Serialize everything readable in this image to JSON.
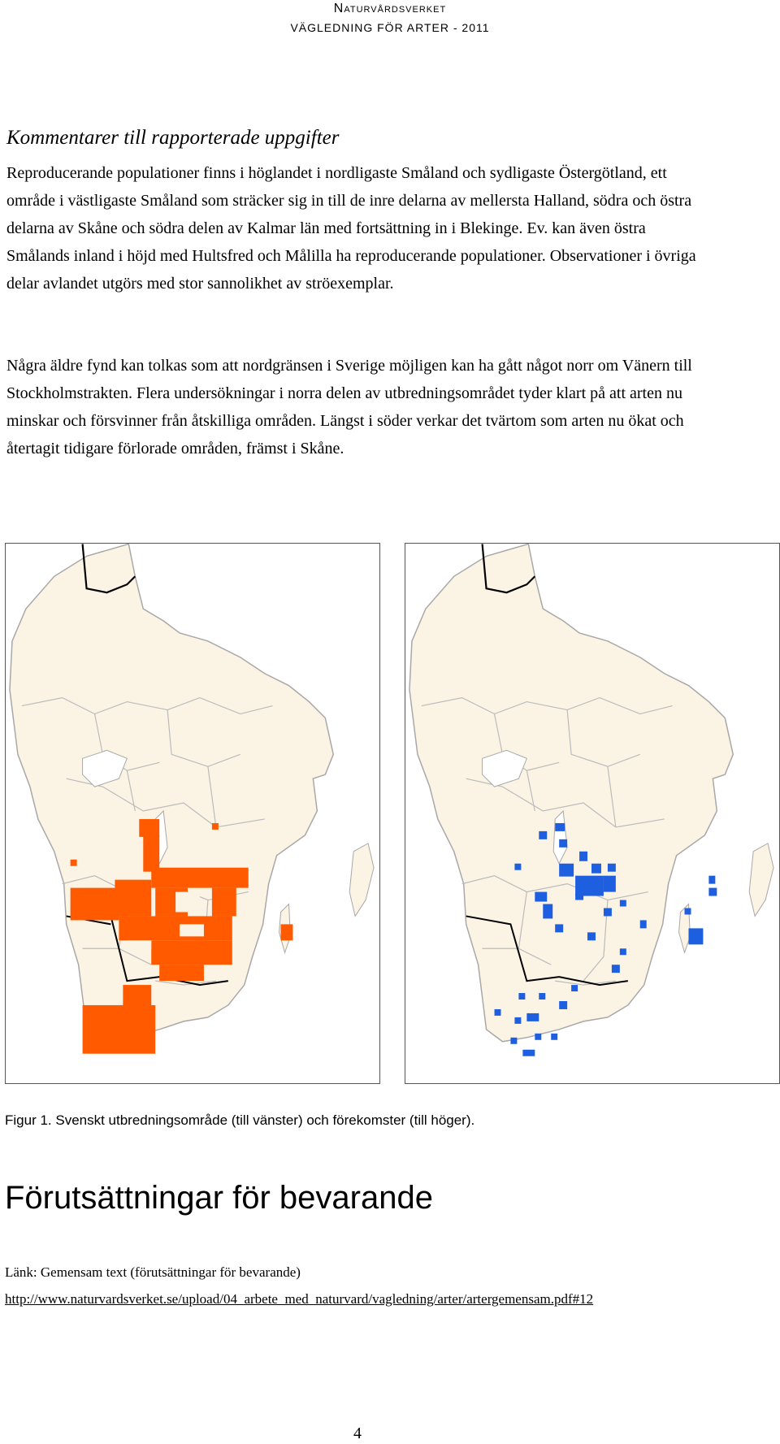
{
  "header": {
    "organization": "Naturvårdsverket",
    "subtitle": "VÄGLEDNING FÖR ARTER - 2011"
  },
  "section_heading": "Kommentarer till rapporterade uppgifter",
  "paragraph1": "Reproducerande populationer finns i höglandet i nordligaste Småland och sydligaste Östergötland, ett område i västligaste Småland som sträcker sig in till de inre delarna av mellersta Halland, södra och östra delarna av Skåne och södra delen av Kalmar län med fortsättning in i Blekinge. Ev. kan även östra Smålands inland i höjd med Hultsfred och Målilla ha reproducerande populationer. Observationer i övriga delar avlandet utgörs med stor sannolikhet av ströexemplar.",
  "paragraph2": "Några äldre fynd kan tolkas som att nordgränsen i Sverige möjligen kan ha gått något norr om Vänern till Stockholmstrakten. Flera undersökningar i norra delen av utbredningsområdet tyder klart på att arten nu minskar och försvinner från åtskilliga områden. Längst i söder verkar det tvärtom som arten nu ökat och återtagit tidigare förlorade områden, främst i Skåne.",
  "maps": {
    "left": {
      "description_icon": "distribution-map",
      "fill_color": "#ff5a00"
    },
    "right": {
      "description_icon": "occurrence-map",
      "fill_color": "#1e5fe0"
    },
    "land_color": "#fbf3e4",
    "border_color": "#b9b9b9"
  },
  "caption": "Figur 1. Svenskt utbredningsområde (till vänster) och förekomster (till höger).",
  "heading2": "Förutsättningar för bevarande",
  "link_label": "Länk: Gemensam text (förutsättningar för bevarande)",
  "link_url": "http://www.naturvardsverket.se/upload/04_arbete_med_naturvard/vagledning/arter/artergemensam.pdf#12",
  "page_number": "4"
}
